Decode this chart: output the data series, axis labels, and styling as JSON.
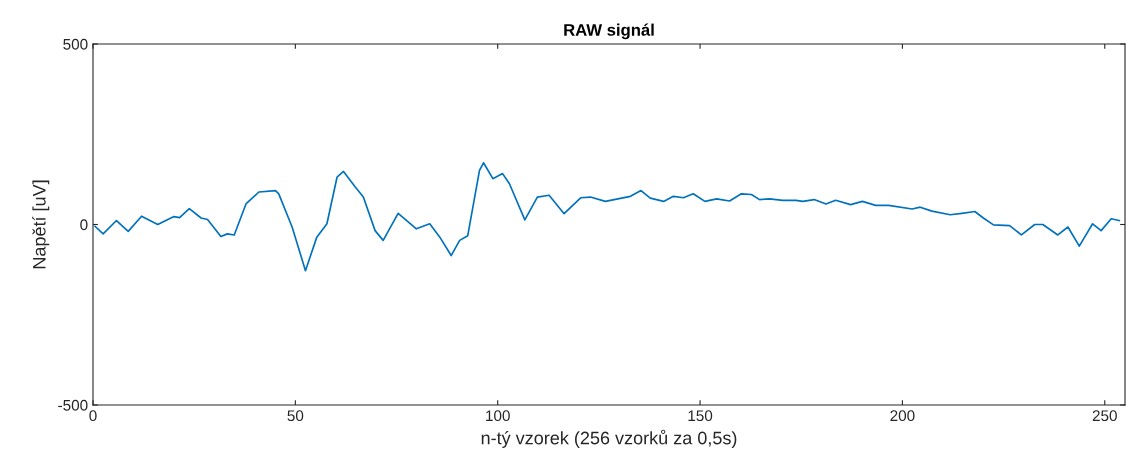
{
  "chart_data": {
    "type": "line",
    "title": "RAW signál",
    "xlabel": "n-tý vzorek (256 vzorků za 0,5s)",
    "ylabel": "Napětí [uV]",
    "xlim": [
      0,
      255
    ],
    "xticks": [
      0,
      50,
      100,
      150,
      200,
      250
    ],
    "ylim": [
      -500,
      500
    ],
    "yticks": [
      -500,
      0,
      500
    ],
    "grid": false,
    "legend": false,
    "series": [
      {
        "color": "#0072bd",
        "x": [
          0.5,
          2.5,
          5.8,
          8.7,
          12,
          16,
          20,
          21.4,
          23.8,
          26.7,
          28.3,
          31.6,
          33.2,
          34.9,
          37.8,
          41,
          45.1,
          45.9,
          49.2,
          52.5,
          55.3,
          57.8,
          60.3,
          61.9,
          64.8,
          66.8,
          69.7,
          71.7,
          75.4,
          79.9,
          83.2,
          85.7,
          88.5,
          90.6,
          92.6,
          95.5,
          96.5,
          98.8,
          101.2,
          102.9,
          106.7,
          109.8,
          112.7,
          116.4,
          120.5,
          122.9,
          126.6,
          132.8,
          135.4,
          137.7,
          141,
          143.4,
          145.9,
          148.3,
          151.2,
          154.1,
          157.3,
          160.2,
          162.7,
          164.7,
          167.2,
          170.4,
          173.7,
          175.4,
          178.2,
          181.1,
          183.5,
          187.2,
          190.1,
          193.4,
          196.6,
          202.4,
          204.4,
          207.3,
          211.8,
          214.7,
          217.9,
          220,
          222.5,
          226.5,
          229.4,
          232.7,
          234.7,
          238.4,
          240.9,
          243.7,
          247,
          249.1,
          251.6,
          253.6
        ],
        "values": [
          -5,
          -26,
          11,
          -19,
          23,
          0,
          22,
          19,
          44,
          18,
          14,
          -33,
          -26,
          -29,
          57,
          90,
          94,
          85,
          -7,
          -128,
          -35,
          2,
          131,
          147,
          104,
          76,
          -17,
          -44,
          31,
          -12,
          2,
          -35,
          -86,
          -44,
          -31,
          150,
          171,
          127,
          141,
          113,
          13,
          76,
          81,
          30,
          74,
          76,
          64,
          78,
          94,
          73,
          64,
          78,
          74,
          85,
          64,
          71,
          65,
          85,
          83,
          69,
          71,
          67,
          67,
          64,
          69,
          57,
          67,
          55,
          64,
          53,
          53,
          43,
          48,
          37,
          27,
          31,
          36,
          18,
          -1,
          -3,
          -29,
          0,
          0,
          -29,
          -7,
          -60,
          2,
          -17,
          16,
          11
        ]
      }
    ]
  }
}
